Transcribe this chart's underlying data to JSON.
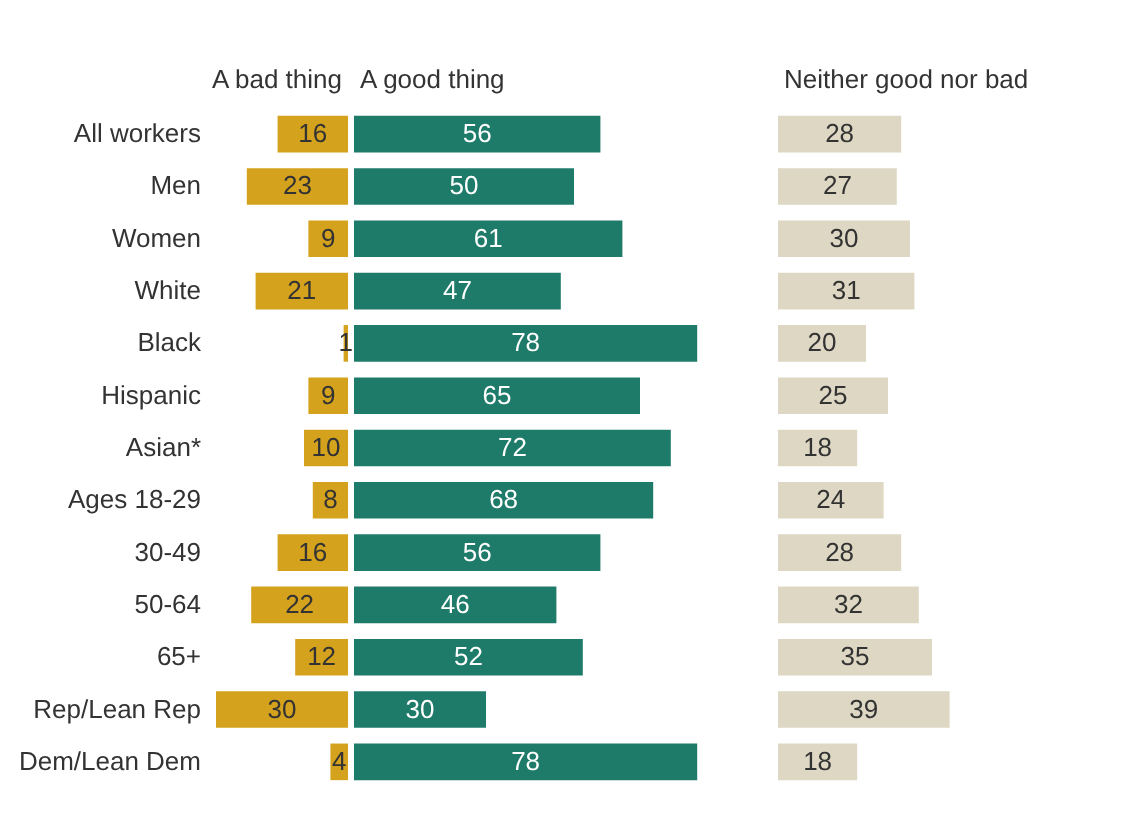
{
  "chart_data": [
    {
      "type": "bar",
      "orientation": "horizontal",
      "legend": "top",
      "data_labels": true,
      "tick_labels": "y",
      "xlim": [
        30,
        0
      ],
      "categories": [
        "All workers",
        "Men",
        "Women",
        "White",
        "Black",
        "Hispanic",
        "Asian*",
        "Ages 18-29",
        "30-49",
        "50-64",
        "65+",
        "Rep/Lean Rep",
        "Dem/Lean Dem"
      ],
      "series": [
        {
          "name": "A bad thing",
          "color": "#d4a21c",
          "values": [
            16,
            23,
            9,
            21,
            1,
            9,
            10,
            8,
            16,
            22,
            12,
            30,
            4
          ]
        }
      ]
    },
    {
      "type": "bar",
      "orientation": "horizontal",
      "legend": "top",
      "data_labels": true,
      "tick_labels": false,
      "xlim": [
        0,
        78
      ],
      "categories": [
        null,
        null,
        null,
        null,
        null,
        null,
        null,
        null,
        null,
        null,
        null,
        null,
        null
      ],
      "series": [
        {
          "name": "A good thing",
          "color": "#1e7b6a",
          "values": [
            56,
            50,
            61,
            47,
            78,
            65,
            72,
            68,
            56,
            46,
            52,
            30,
            78
          ]
        }
      ]
    },
    {
      "type": "bar",
      "orientation": "horizontal",
      "legend": "top",
      "data_labels": true,
      "tick_labels": false,
      "xlim": [
        0,
        39
      ],
      "categories": [
        null,
        null,
        null,
        null,
        null,
        null,
        null,
        null,
        null,
        null,
        null,
        null,
        null
      ],
      "series": [
        {
          "name": "Neither good nor bad",
          "color": "#ddd7c3",
          "values": [
            28,
            27,
            30,
            31,
            20,
            25,
            18,
            24,
            28,
            32,
            35,
            39,
            18
          ]
        }
      ]
    }
  ]
}
